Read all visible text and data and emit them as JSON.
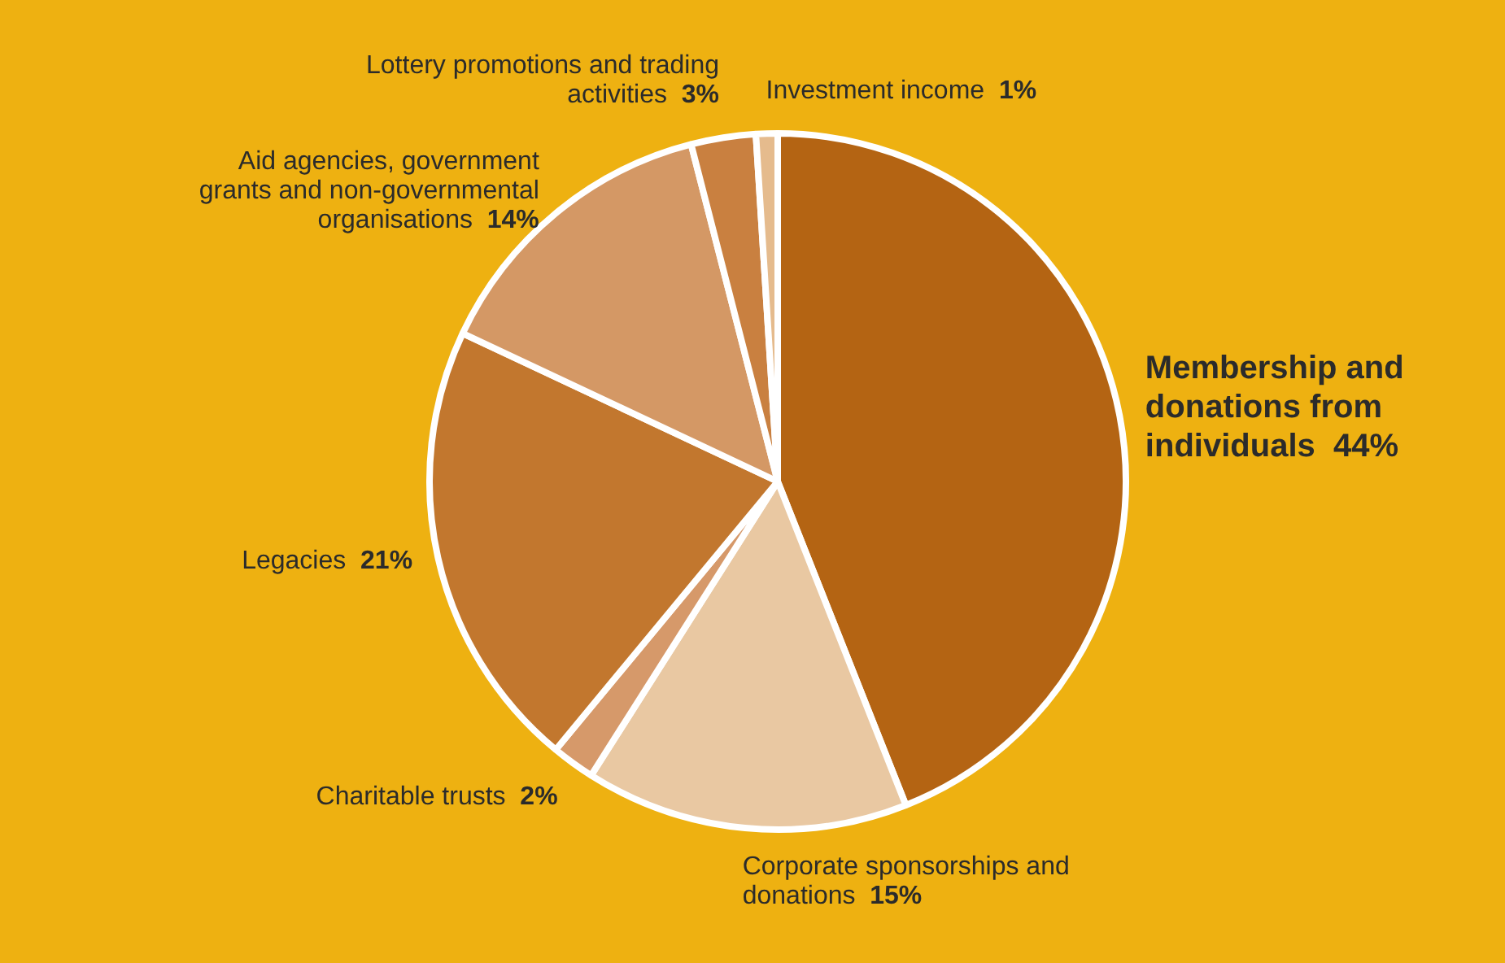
{
  "chart_data": {
    "type": "pie",
    "categories": [
      "Membership and donations from individuals",
      "Corporate sponsorships and donations",
      "Charitable trusts",
      "Legacies",
      "Aid agencies, government grants and non-governmental organisations",
      "Lottery promotions and trading activities",
      "Investment income"
    ],
    "values": [
      44,
      15,
      2,
      21,
      14,
      3,
      1
    ],
    "value_labels": [
      "44%",
      "15%",
      "2%",
      "21%",
      "14%",
      "3%",
      "1%"
    ],
    "colors": [
      "#b46413",
      "#e9c8a2",
      "#d6996a",
      "#c2772e",
      "#d49865",
      "#c98040",
      "#e5bb8d"
    ],
    "legend": false
  }
}
